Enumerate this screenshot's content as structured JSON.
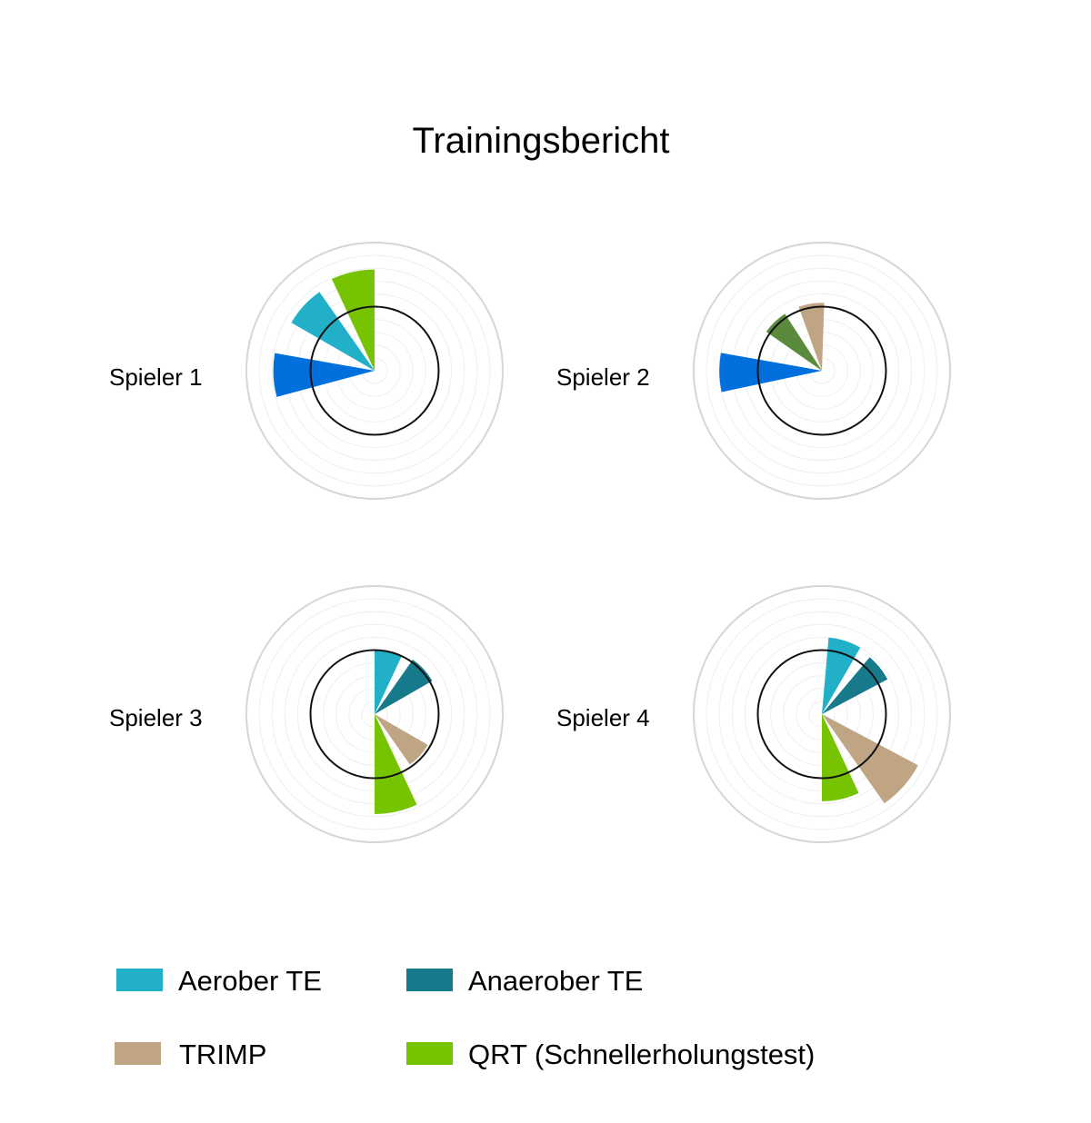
{
  "chart_data": {
    "type": "polar-bar",
    "title": "Trainingsbericht",
    "scale": {
      "max": 100,
      "rings": 10,
      "reference": 50
    },
    "metrics": [
      {
        "name": "Aerober TE",
        "color": "#22b0c8"
      },
      {
        "name": "Anaerober TE",
        "color": "#167a8a"
      },
      {
        "name": "TRIMP",
        "color": "#bfa584"
      },
      {
        "name": "QRT (Schnellerholungstest)",
        "color": "#76c401"
      },
      {
        "name": "",
        "color": "#0170dc"
      },
      {
        "name": "",
        "color": "#5a8a3c"
      }
    ],
    "players": [
      {
        "name": "Spieler 1",
        "bars": [
          {
            "metric": 4,
            "start": 255,
            "end": 280,
            "value": 79
          },
          {
            "metric": 0,
            "start": 300,
            "end": 325,
            "value": 75
          },
          {
            "metric": 3,
            "start": 335,
            "end": 360,
            "value": 79
          }
        ]
      },
      {
        "name": "Spieler 2",
        "bars": [
          {
            "metric": 4,
            "start": 258,
            "end": 280,
            "value": 80
          },
          {
            "metric": 5,
            "start": 305,
            "end": 327,
            "value": 53
          },
          {
            "metric": 2,
            "start": 340,
            "end": 362,
            "value": 53
          }
        ]
      },
      {
        "name": "Spieler 3",
        "bars": [
          {
            "metric": 0,
            "start": 0,
            "end": 25,
            "value": 50
          },
          {
            "metric": 1,
            "start": 35,
            "end": 60,
            "value": 52
          },
          {
            "metric": 2,
            "start": 120,
            "end": 145,
            "value": 48
          },
          {
            "metric": 3,
            "start": 155,
            "end": 180,
            "value": 78
          }
        ]
      },
      {
        "name": "Spieler 4",
        "bars": [
          {
            "metric": 0,
            "start": 5,
            "end": 30,
            "value": 60
          },
          {
            "metric": 1,
            "start": 40,
            "end": 62,
            "value": 58
          },
          {
            "metric": 2,
            "start": 118,
            "end": 145,
            "value": 85
          },
          {
            "metric": 3,
            "start": 155,
            "end": 180,
            "value": 68
          }
        ]
      }
    ],
    "legend": [
      {
        "label": "Aerober TE",
        "metric": 0
      },
      {
        "label": "Anaerober TE",
        "metric": 1
      },
      {
        "label": "TRIMP",
        "metric": 2
      },
      {
        "label": "QRT (Schnellerholungstest)",
        "metric": 3
      }
    ]
  }
}
